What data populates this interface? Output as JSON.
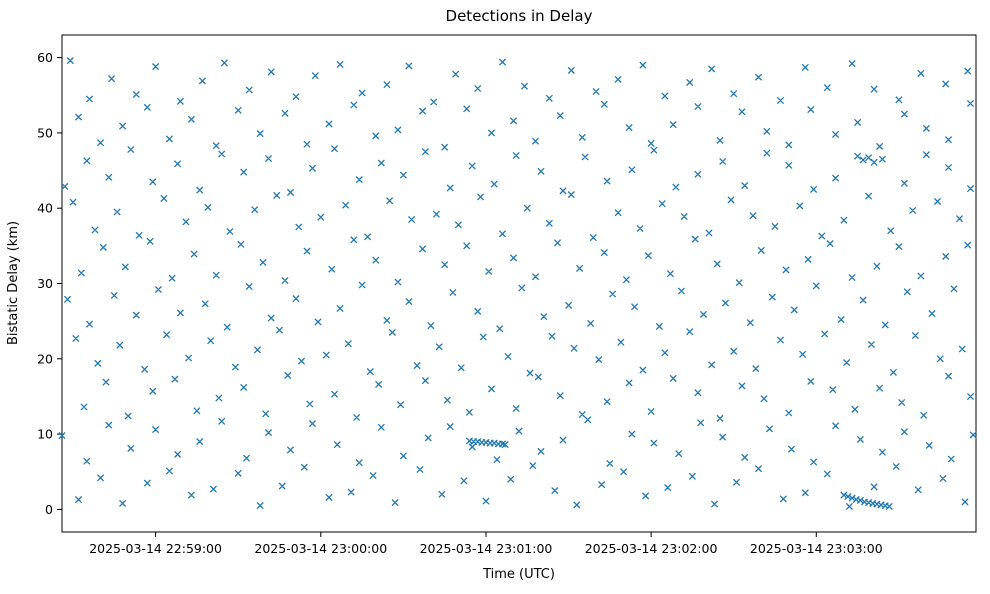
{
  "chart_data": {
    "type": "scatter",
    "title": "Detections in Delay",
    "xlabel": "Time (UTC)",
    "ylabel": "Bistatic Delay (km)",
    "marker": "x",
    "marker_color": "#1f77b4",
    "grid": false,
    "legend": null,
    "x_range": [
      0,
      332
    ],
    "ylim": [
      -3,
      63
    ],
    "y_ticks": [
      0,
      10,
      20,
      30,
      40,
      50,
      60
    ],
    "x_ticks": [
      {
        "pos": 34,
        "label": "2025-03-14 22:59:00"
      },
      {
        "pos": 94,
        "label": "2025-03-14 23:00:00"
      },
      {
        "pos": 154,
        "label": "2025-03-14 23:01:00"
      },
      {
        "pos": 214,
        "label": "2025-03-14 23:02:00"
      },
      {
        "pos": 274,
        "label": "2025-03-14 23:03:00"
      }
    ],
    "points_note": "points are [seconds after axis start (22:58:26 UTC), bistatic delay km], estimated from pixels",
    "points": [
      [
        3,
        59.6
      ],
      [
        10,
        54.5
      ],
      [
        18,
        57.2
      ],
      [
        27,
        55.1
      ],
      [
        34,
        58.8
      ],
      [
        43,
        54.2
      ],
      [
        51,
        56.9
      ],
      [
        59,
        59.3
      ],
      [
        68,
        55.7
      ],
      [
        76,
        58.1
      ],
      [
        85,
        54.8
      ],
      [
        92,
        57.6
      ],
      [
        101,
        59.1
      ],
      [
        109,
        55.3
      ],
      [
        118,
        56.4
      ],
      [
        126,
        58.9
      ],
      [
        135,
        54.1
      ],
      [
        143,
        57.8
      ],
      [
        151,
        55.9
      ],
      [
        160,
        59.4
      ],
      [
        168,
        56.2
      ],
      [
        177,
        54.6
      ],
      [
        185,
        58.3
      ],
      [
        194,
        55.5
      ],
      [
        202,
        57.1
      ],
      [
        211,
        59.0
      ],
      [
        219,
        54.9
      ],
      [
        228,
        56.7
      ],
      [
        236,
        58.5
      ],
      [
        244,
        55.2
      ],
      [
        253,
        57.4
      ],
      [
        261,
        54.3
      ],
      [
        270,
        58.7
      ],
      [
        278,
        56.0
      ],
      [
        287,
        59.2
      ],
      [
        295,
        55.8
      ],
      [
        304,
        54.4
      ],
      [
        312,
        57.9
      ],
      [
        321,
        56.5
      ],
      [
        329,
        58.2
      ],
      [
        6,
        52.1
      ],
      [
        14,
        48.7
      ],
      [
        22,
        50.9
      ],
      [
        31,
        53.4
      ],
      [
        39,
        49.2
      ],
      [
        47,
        51.8
      ],
      [
        56,
        48.3
      ],
      [
        64,
        53.0
      ],
      [
        72,
        49.9
      ],
      [
        81,
        52.6
      ],
      [
        89,
        48.5
      ],
      [
        97,
        51.2
      ],
      [
        106,
        53.7
      ],
      [
        114,
        49.6
      ],
      [
        122,
        50.4
      ],
      [
        131,
        52.9
      ],
      [
        139,
        48.1
      ],
      [
        147,
        53.2
      ],
      [
        156,
        50.0
      ],
      [
        164,
        51.6
      ],
      [
        172,
        48.9
      ],
      [
        181,
        52.3
      ],
      [
        189,
        49.4
      ],
      [
        197,
        53.8
      ],
      [
        206,
        50.7
      ],
      [
        214,
        48.6
      ],
      [
        222,
        51.1
      ],
      [
        231,
        53.5
      ],
      [
        239,
        49.0
      ],
      [
        247,
        52.8
      ],
      [
        256,
        50.2
      ],
      [
        264,
        48.4
      ],
      [
        272,
        53.1
      ],
      [
        281,
        49.8
      ],
      [
        289,
        51.4
      ],
      [
        297,
        48.2
      ],
      [
        306,
        52.5
      ],
      [
        314,
        50.6
      ],
      [
        322,
        49.1
      ],
      [
        330,
        53.9
      ],
      [
        1,
        42.9
      ],
      [
        9,
        46.3
      ],
      [
        17,
        44.1
      ],
      [
        25,
        47.8
      ],
      [
        33,
        43.5
      ],
      [
        42,
        45.9
      ],
      [
        50,
        42.4
      ],
      [
        58,
        47.2
      ],
      [
        66,
        44.8
      ],
      [
        75,
        46.6
      ],
      [
        83,
        42.1
      ],
      [
        91,
        45.3
      ],
      [
        99,
        47.9
      ],
      [
        108,
        43.8
      ],
      [
        116,
        46.0
      ],
      [
        124,
        44.4
      ],
      [
        132,
        47.5
      ],
      [
        141,
        42.7
      ],
      [
        149,
        45.6
      ],
      [
        157,
        43.2
      ],
      [
        165,
        47.0
      ],
      [
        174,
        44.9
      ],
      [
        182,
        42.3
      ],
      [
        190,
        46.8
      ],
      [
        198,
        43.6
      ],
      [
        207,
        45.1
      ],
      [
        215,
        47.7
      ],
      [
        223,
        42.8
      ],
      [
        231,
        44.5
      ],
      [
        240,
        46.2
      ],
      [
        248,
        43.0
      ],
      [
        256,
        47.3
      ],
      [
        264,
        45.7
      ],
      [
        273,
        42.5
      ],
      [
        281,
        44.0
      ],
      [
        289,
        46.9
      ],
      [
        291,
        46.4
      ],
      [
        293,
        46.7
      ],
      [
        295,
        46.1
      ],
      [
        298,
        46.5
      ],
      [
        306,
        43.3
      ],
      [
        314,
        47.1
      ],
      [
        322,
        45.4
      ],
      [
        330,
        42.6
      ],
      [
        4,
        40.8
      ],
      [
        12,
        37.1
      ],
      [
        20,
        39.5
      ],
      [
        28,
        36.4
      ],
      [
        37,
        41.3
      ],
      [
        45,
        38.2
      ],
      [
        53,
        40.1
      ],
      [
        61,
        36.9
      ],
      [
        70,
        39.8
      ],
      [
        78,
        41.7
      ],
      [
        86,
        37.5
      ],
      [
        94,
        38.8
      ],
      [
        103,
        40.4
      ],
      [
        111,
        36.2
      ],
      [
        119,
        41.0
      ],
      [
        127,
        38.5
      ],
      [
        136,
        39.2
      ],
      [
        144,
        37.8
      ],
      [
        152,
        41.5
      ],
      [
        160,
        36.6
      ],
      [
        169,
        40.0
      ],
      [
        177,
        38.0
      ],
      [
        185,
        41.8
      ],
      [
        193,
        36.1
      ],
      [
        202,
        39.4
      ],
      [
        210,
        37.3
      ],
      [
        218,
        40.6
      ],
      [
        226,
        38.9
      ],
      [
        235,
        36.7
      ],
      [
        243,
        41.1
      ],
      [
        251,
        39.0
      ],
      [
        259,
        37.6
      ],
      [
        268,
        40.3
      ],
      [
        276,
        36.3
      ],
      [
        284,
        38.4
      ],
      [
        293,
        41.6
      ],
      [
        301,
        37.0
      ],
      [
        309,
        39.7
      ],
      [
        318,
        40.9
      ],
      [
        326,
        38.6
      ],
      [
        7,
        31.4
      ],
      [
        15,
        34.8
      ],
      [
        23,
        32.2
      ],
      [
        32,
        35.6
      ],
      [
        40,
        30.7
      ],
      [
        48,
        33.9
      ],
      [
        56,
        31.1
      ],
      [
        65,
        35.2
      ],
      [
        73,
        32.8
      ],
      [
        81,
        30.4
      ],
      [
        89,
        34.3
      ],
      [
        98,
        31.9
      ],
      [
        106,
        35.8
      ],
      [
        114,
        33.1
      ],
      [
        122,
        30.2
      ],
      [
        131,
        34.6
      ],
      [
        139,
        32.5
      ],
      [
        147,
        35.0
      ],
      [
        155,
        31.6
      ],
      [
        164,
        33.4
      ],
      [
        172,
        30.9
      ],
      [
        180,
        35.4
      ],
      [
        188,
        32.0
      ],
      [
        197,
        34.1
      ],
      [
        205,
        30.5
      ],
      [
        213,
        33.7
      ],
      [
        221,
        31.3
      ],
      [
        230,
        35.9
      ],
      [
        238,
        32.6
      ],
      [
        246,
        30.1
      ],
      [
        254,
        34.4
      ],
      [
        263,
        31.8
      ],
      [
        271,
        33.2
      ],
      [
        279,
        35.3
      ],
      [
        287,
        30.8
      ],
      [
        296,
        32.3
      ],
      [
        304,
        34.9
      ],
      [
        312,
        31.0
      ],
      [
        321,
        33.6
      ],
      [
        329,
        35.1
      ],
      [
        2,
        27.9
      ],
      [
        10,
        24.6
      ],
      [
        19,
        28.4
      ],
      [
        27,
        25.8
      ],
      [
        35,
        29.2
      ],
      [
        43,
        26.1
      ],
      [
        52,
        27.3
      ],
      [
        60,
        24.2
      ],
      [
        68,
        29.6
      ],
      [
        76,
        25.4
      ],
      [
        85,
        28.0
      ],
      [
        93,
        24.9
      ],
      [
        101,
        26.7
      ],
      [
        109,
        29.8
      ],
      [
        118,
        25.1
      ],
      [
        126,
        27.6
      ],
      [
        134,
        24.4
      ],
      [
        142,
        28.8
      ],
      [
        151,
        26.3
      ],
      [
        159,
        24.0
      ],
      [
        167,
        29.4
      ],
      [
        175,
        25.6
      ],
      [
        184,
        27.1
      ],
      [
        192,
        24.7
      ],
      [
        200,
        28.6
      ],
      [
        208,
        26.9
      ],
      [
        217,
        24.3
      ],
      [
        225,
        29.0
      ],
      [
        233,
        25.9
      ],
      [
        241,
        27.4
      ],
      [
        250,
        24.8
      ],
      [
        258,
        28.2
      ],
      [
        266,
        26.5
      ],
      [
        274,
        29.7
      ],
      [
        283,
        25.2
      ],
      [
        291,
        27.8
      ],
      [
        299,
        24.5
      ],
      [
        307,
        28.9
      ],
      [
        316,
        26.0
      ],
      [
        324,
        29.3
      ],
      [
        5,
        22.7
      ],
      [
        13,
        19.4
      ],
      [
        21,
        21.8
      ],
      [
        30,
        18.6
      ],
      [
        38,
        23.2
      ],
      [
        46,
        20.1
      ],
      [
        54,
        22.4
      ],
      [
        63,
        18.9
      ],
      [
        71,
        21.2
      ],
      [
        79,
        23.8
      ],
      [
        87,
        19.7
      ],
      [
        96,
        20.5
      ],
      [
        104,
        22.0
      ],
      [
        112,
        18.3
      ],
      [
        120,
        23.5
      ],
      [
        129,
        19.1
      ],
      [
        137,
        21.6
      ],
      [
        145,
        18.8
      ],
      [
        153,
        22.9
      ],
      [
        162,
        20.3
      ],
      [
        170,
        18.1
      ],
      [
        178,
        23.0
      ],
      [
        186,
        21.4
      ],
      [
        195,
        19.9
      ],
      [
        203,
        22.2
      ],
      [
        211,
        18.5
      ],
      [
        219,
        20.8
      ],
      [
        228,
        23.6
      ],
      [
        236,
        19.2
      ],
      [
        244,
        21.0
      ],
      [
        252,
        18.7
      ],
      [
        261,
        22.5
      ],
      [
        269,
        20.6
      ],
      [
        277,
        23.3
      ],
      [
        285,
        19.5
      ],
      [
        294,
        21.9
      ],
      [
        302,
        18.2
      ],
      [
        310,
        23.1
      ],
      [
        319,
        20.0
      ],
      [
        327,
        21.3
      ],
      [
        8,
        13.6
      ],
      [
        16,
        16.9
      ],
      [
        24,
        12.4
      ],
      [
        33,
        15.7
      ],
      [
        41,
        17.3
      ],
      [
        49,
        13.1
      ],
      [
        57,
        14.8
      ],
      [
        66,
        16.2
      ],
      [
        74,
        12.7
      ],
      [
        82,
        17.8
      ],
      [
        90,
        14.0
      ],
      [
        99,
        15.3
      ],
      [
        107,
        12.2
      ],
      [
        115,
        16.6
      ],
      [
        123,
        13.9
      ],
      [
        132,
        17.1
      ],
      [
        140,
        14.5
      ],
      [
        148,
        12.9
      ],
      [
        156,
        16.0
      ],
      [
        165,
        13.4
      ],
      [
        173,
        17.6
      ],
      [
        181,
        15.1
      ],
      [
        189,
        12.6
      ],
      [
        198,
        14.3
      ],
      [
        206,
        16.8
      ],
      [
        214,
        13.0
      ],
      [
        222,
        17.4
      ],
      [
        231,
        15.5
      ],
      [
        239,
        12.1
      ],
      [
        247,
        16.4
      ],
      [
        255,
        14.7
      ],
      [
        264,
        12.8
      ],
      [
        272,
        17.0
      ],
      [
        280,
        15.9
      ],
      [
        288,
        13.3
      ],
      [
        297,
        16.1
      ],
      [
        305,
        14.2
      ],
      [
        313,
        12.5
      ],
      [
        322,
        17.7
      ],
      [
        330,
        15.0
      ],
      [
        0,
        9.8
      ],
      [
        9,
        6.4
      ],
      [
        17,
        11.2
      ],
      [
        25,
        8.1
      ],
      [
        34,
        10.6
      ],
      [
        42,
        7.3
      ],
      [
        50,
        9.0
      ],
      [
        58,
        11.7
      ],
      [
        67,
        6.8
      ],
      [
        75,
        10.2
      ],
      [
        83,
        7.9
      ],
      [
        91,
        11.4
      ],
      [
        100,
        8.6
      ],
      [
        108,
        6.2
      ],
      [
        116,
        10.9
      ],
      [
        124,
        7.1
      ],
      [
        133,
        9.5
      ],
      [
        141,
        11.0
      ],
      [
        149,
        8.3
      ],
      [
        158,
        6.6
      ],
      [
        166,
        10.4
      ],
      [
        174,
        7.7
      ],
      [
        182,
        9.2
      ],
      [
        191,
        11.9
      ],
      [
        199,
        6.1
      ],
      [
        207,
        10.0
      ],
      [
        215,
        8.8
      ],
      [
        224,
        7.4
      ],
      [
        232,
        11.5
      ],
      [
        240,
        9.6
      ],
      [
        248,
        6.9
      ],
      [
        257,
        10.7
      ],
      [
        265,
        8.0
      ],
      [
        273,
        6.3
      ],
      [
        281,
        11.1
      ],
      [
        290,
        9.3
      ],
      [
        298,
        7.6
      ],
      [
        306,
        10.3
      ],
      [
        315,
        8.5
      ],
      [
        323,
        6.7
      ],
      [
        331,
        9.9
      ],
      [
        6,
        1.3
      ],
      [
        14,
        4.2
      ],
      [
        22,
        0.8
      ],
      [
        31,
        3.5
      ],
      [
        39,
        5.1
      ],
      [
        47,
        1.9
      ],
      [
        55,
        2.7
      ],
      [
        64,
        4.8
      ],
      [
        72,
        0.5
      ],
      [
        80,
        3.1
      ],
      [
        88,
        5.6
      ],
      [
        97,
        1.6
      ],
      [
        105,
        2.3
      ],
      [
        113,
        4.5
      ],
      [
        121,
        0.9
      ],
      [
        130,
        5.3
      ],
      [
        138,
        2.0
      ],
      [
        146,
        3.8
      ],
      [
        154,
        1.1
      ],
      [
        163,
        4.0
      ],
      [
        171,
        5.8
      ],
      [
        179,
        2.5
      ],
      [
        187,
        0.6
      ],
      [
        196,
        3.3
      ],
      [
        204,
        5.0
      ],
      [
        212,
        1.8
      ],
      [
        220,
        2.9
      ],
      [
        229,
        4.4
      ],
      [
        237,
        0.7
      ],
      [
        245,
        3.6
      ],
      [
        253,
        5.4
      ],
      [
        262,
        1.4
      ],
      [
        270,
        2.2
      ],
      [
        278,
        4.7
      ],
      [
        286,
        0.4
      ],
      [
        295,
        3.0
      ],
      [
        303,
        5.7
      ],
      [
        311,
        2.6
      ],
      [
        320,
        4.1
      ],
      [
        328,
        1.0
      ],
      [
        148,
        9.1
      ],
      [
        149.5,
        9.0
      ],
      [
        151,
        9.0
      ],
      [
        152.5,
        8.9
      ],
      [
        154,
        8.9
      ],
      [
        155.5,
        8.8
      ],
      [
        157,
        8.8
      ],
      [
        158.5,
        8.7
      ],
      [
        160,
        8.7
      ],
      [
        161,
        8.6
      ],
      [
        284,
        1.9
      ],
      [
        285.5,
        1.7
      ],
      [
        287,
        1.5
      ],
      [
        288.5,
        1.3
      ],
      [
        290,
        1.2
      ],
      [
        291.5,
        1.0
      ],
      [
        293,
        0.9
      ],
      [
        294.5,
        0.8
      ],
      [
        296,
        0.7
      ],
      [
        297.5,
        0.6
      ],
      [
        299,
        0.5
      ],
      [
        300.5,
        0.4
      ]
    ]
  }
}
